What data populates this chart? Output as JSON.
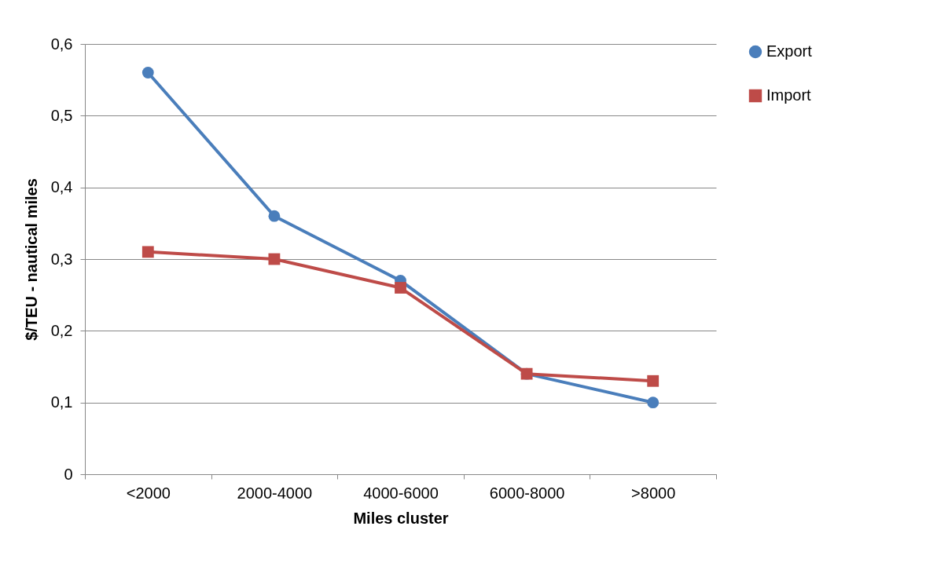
{
  "chart_data": {
    "type": "line",
    "xlabel": "Miles cluster",
    "ylabel": "$/TEU - nautical miles",
    "categories": [
      "<2000",
      "2000-4000",
      "4000-6000",
      "6000-8000",
      ">8000"
    ],
    "series": [
      {
        "name": "Export",
        "color": "#4a7ebb",
        "marker": "circle",
        "values": [
          0.56,
          0.36,
          0.27,
          0.14,
          0.1
        ]
      },
      {
        "name": "Import",
        "color": "#be4b48",
        "marker": "square",
        "values": [
          0.31,
          0.3,
          0.26,
          0.14,
          0.13
        ]
      }
    ],
    "ylim": [
      0,
      0.6
    ],
    "yticks": [
      0,
      {
        "value": 0.1,
        "label": "0,1"
      },
      {
        "value": 0.2,
        "label": "0,2"
      },
      {
        "value": 0.3,
        "label": "0,3"
      },
      {
        "value": 0.4,
        "label": "0,4"
      },
      {
        "value": 0.5,
        "label": "0,5"
      },
      {
        "value": 0.6,
        "label": "0,6"
      }
    ],
    "grid": "y",
    "legend": "right",
    "line_style": "solid"
  }
}
